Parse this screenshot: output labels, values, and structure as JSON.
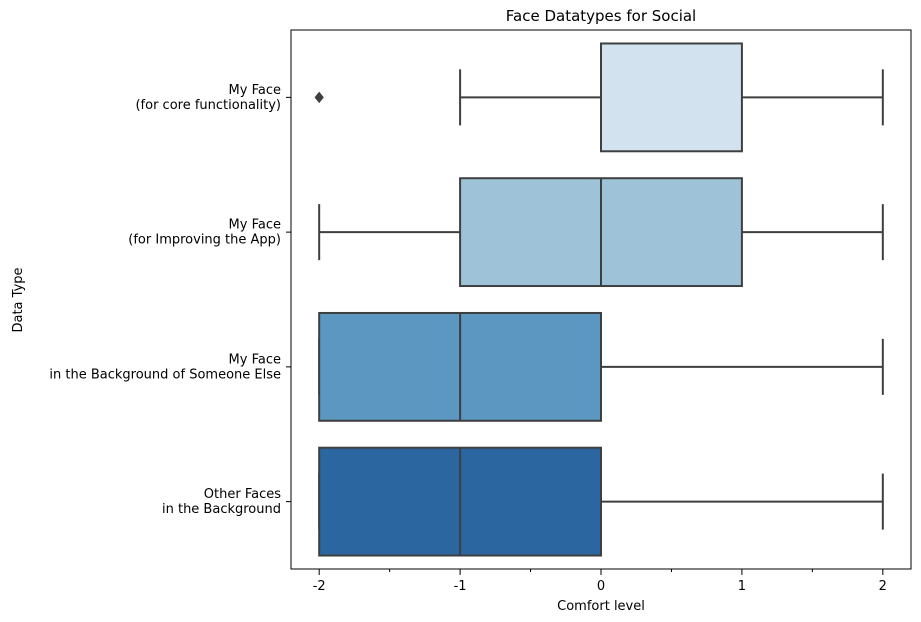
{
  "chart_data": {
    "type": "boxplot",
    "orientation": "horizontal",
    "title": "Face Datatypes for Social",
    "xlabel": "Comfort level",
    "ylabel": "Data Type",
    "xlim": [
      -2.2,
      2.2
    ],
    "x_ticks": [
      -2,
      -1,
      0,
      1,
      2
    ],
    "x_tick_labels": [
      "-2",
      "-1",
      "0",
      "1",
      "2"
    ],
    "x_minor_ticks": [
      -1.5,
      -0.5,
      0.5,
      1.5
    ],
    "grid": false,
    "categories": [
      {
        "label_lines": [
          "My Face",
          "(for core functionality)"
        ],
        "whisker_low": -1,
        "q1": 0,
        "median": 0,
        "q3": 1,
        "whisker_high": 2,
        "outliers": [
          -2
        ],
        "color": "#d3e2ef"
      },
      {
        "label_lines": [
          "My Face",
          "(for Improving the App)"
        ],
        "whisker_low": -2,
        "q1": -1,
        "median": 0,
        "q3": 1,
        "whisker_high": 2,
        "outliers": [],
        "color": "#9ec3d9"
      },
      {
        "label_lines": [
          "My Face",
          "in the Background of Someone Else"
        ],
        "whisker_low": -2,
        "q1": -2,
        "median": -1,
        "q3": 0,
        "whisker_high": 2,
        "outliers": [],
        "color": "#5b97c0"
      },
      {
        "label_lines": [
          "Other Faces",
          "in the Background"
        ],
        "whisker_low": -2,
        "q1": -2,
        "median": -1,
        "q3": 0,
        "whisker_high": 2,
        "outliers": [],
        "color": "#2b66a0"
      }
    ],
    "line_color": "#3f3f3f"
  }
}
